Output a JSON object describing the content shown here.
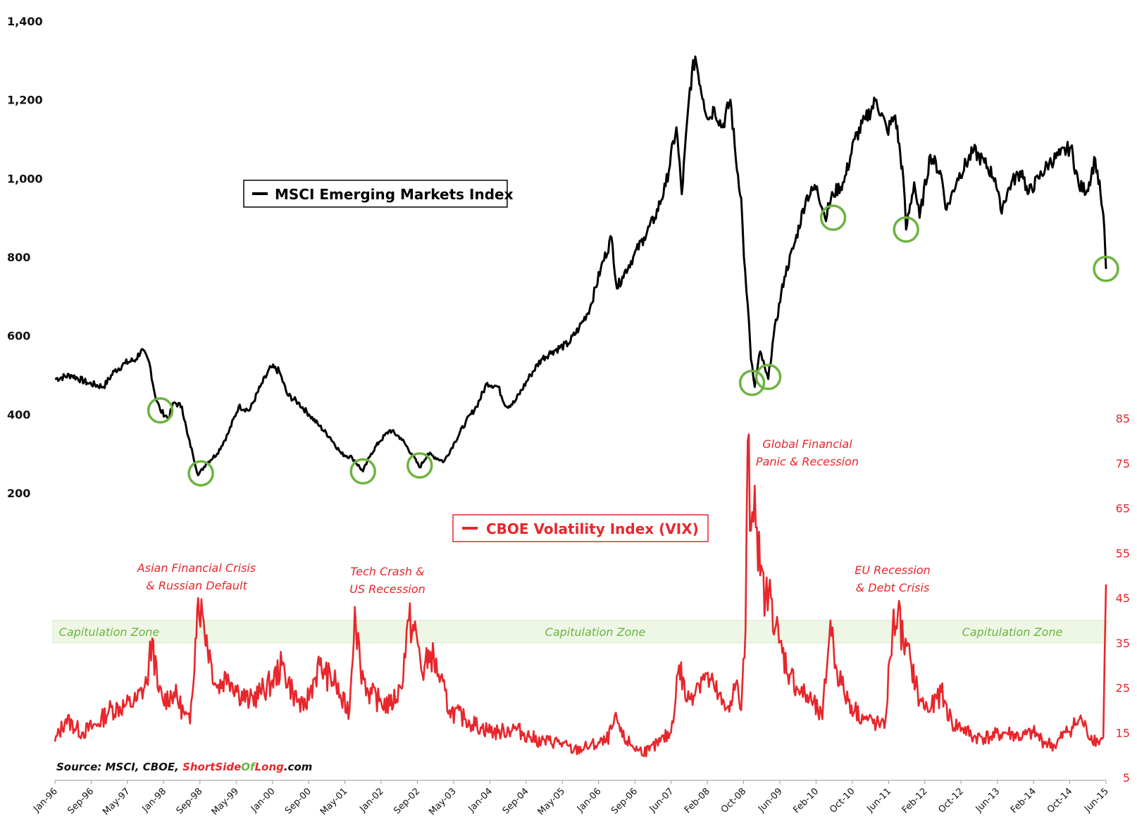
{
  "chart_data": {
    "type": "line",
    "x_tick_labels": [
      "Jan-96",
      "Sep-96",
      "May-97",
      "Jan-98",
      "Sep-98",
      "May-99",
      "Jan-00",
      "Sep-00",
      "May-01",
      "Jan-02",
      "Sep-02",
      "May-03",
      "Jan-04",
      "Sep-04",
      "May-05",
      "Jan-06",
      "Sep-06",
      "Jun-07",
      "Feb-08",
      "Oct-08",
      "Jun-09",
      "Feb-10",
      "Oct-10",
      "Jun-11",
      "Feb-12",
      "Oct-12",
      "Jun-13",
      "Feb-14",
      "Oct-14",
      "Jun-15"
    ],
    "x_range": [
      1996.0,
      2015.45
    ],
    "y_left": {
      "ticks": [
        "1,400",
        "1,200",
        "1,000",
        "800",
        "600",
        "400",
        "200"
      ],
      "tick_values": [
        1400,
        1200,
        1000,
        800,
        600,
        400,
        200
      ],
      "range": [
        200,
        1400
      ]
    },
    "y_right": {
      "ticks": [
        "85",
        "75",
        "65",
        "55",
        "45",
        "35",
        "25",
        "15",
        "5"
      ],
      "tick_values": [
        85,
        75,
        65,
        55,
        45,
        35,
        25,
        15,
        5
      ],
      "range": [
        5,
        85
      ]
    },
    "series": [
      {
        "name": "MSCI Emerging Markets Index",
        "axis": "left",
        "color": "#000000",
        "points": [
          [
            1996.0,
            490
          ],
          [
            1996.3,
            500
          ],
          [
            1996.6,
            480
          ],
          [
            1996.9,
            470
          ],
          [
            1997.1,
            510
          ],
          [
            1997.3,
            530
          ],
          [
            1997.5,
            540
          ],
          [
            1997.6,
            565
          ],
          [
            1997.75,
            530
          ],
          [
            1997.85,
            450
          ],
          [
            1997.95,
            410
          ],
          [
            1998.1,
            390
          ],
          [
            1998.2,
            430
          ],
          [
            1998.35,
            420
          ],
          [
            1998.45,
            350
          ],
          [
            1998.55,
            300
          ],
          [
            1998.65,
            245
          ],
          [
            1998.8,
            275
          ],
          [
            1999.0,
            300
          ],
          [
            1999.2,
            350
          ],
          [
            1999.4,
            420
          ],
          [
            1999.6,
            410
          ],
          [
            1999.8,
            470
          ],
          [
            2000.0,
            520
          ],
          [
            2000.15,
            510
          ],
          [
            2000.3,
            450
          ],
          [
            2000.5,
            430
          ],
          [
            2000.7,
            400
          ],
          [
            2000.9,
            370
          ],
          [
            2001.1,
            340
          ],
          [
            2001.3,
            300
          ],
          [
            2001.5,
            290
          ],
          [
            2001.7,
            255
          ],
          [
            2001.85,
            300
          ],
          [
            2002.0,
            330
          ],
          [
            2002.2,
            360
          ],
          [
            2002.4,
            340
          ],
          [
            2002.6,
            300
          ],
          [
            2002.75,
            265
          ],
          [
            2002.9,
            300
          ],
          [
            2003.2,
            280
          ],
          [
            2003.4,
            330
          ],
          [
            2003.6,
            380
          ],
          [
            2003.8,
            420
          ],
          [
            2004.0,
            480
          ],
          [
            2004.2,
            470
          ],
          [
            2004.35,
            420
          ],
          [
            2004.5,
            430
          ],
          [
            2004.8,
            500
          ],
          [
            2005.0,
            540
          ],
          [
            2005.2,
            560
          ],
          [
            2005.5,
            580
          ],
          [
            2005.7,
            620
          ],
          [
            2005.9,
            670
          ],
          [
            2006.1,
            770
          ],
          [
            2006.3,
            850
          ],
          [
            2006.4,
            720
          ],
          [
            2006.5,
            750
          ],
          [
            2006.7,
            800
          ],
          [
            2006.9,
            850
          ],
          [
            2007.1,
            900
          ],
          [
            2007.3,
            980
          ],
          [
            2007.5,
            1130
          ],
          [
            2007.6,
            960
          ],
          [
            2007.75,
            1230
          ],
          [
            2007.85,
            1310
          ],
          [
            2008.0,
            1200
          ],
          [
            2008.1,
            1150
          ],
          [
            2008.2,
            1180
          ],
          [
            2008.35,
            1130
          ],
          [
            2008.5,
            1200
          ],
          [
            2008.6,
            1050
          ],
          [
            2008.7,
            950
          ],
          [
            2008.75,
            800
          ],
          [
            2008.82,
            680
          ],
          [
            2008.88,
            540
          ],
          [
            2008.95,
            470
          ],
          [
            2009.05,
            560
          ],
          [
            2009.15,
            510
          ],
          [
            2009.2,
            490
          ],
          [
            2009.3,
            600
          ],
          [
            2009.5,
            750
          ],
          [
            2009.7,
            840
          ],
          [
            2009.9,
            950
          ],
          [
            2010.1,
            980
          ],
          [
            2010.25,
            900
          ],
          [
            2010.4,
            960
          ],
          [
            2010.6,
            990
          ],
          [
            2010.8,
            1100
          ],
          [
            2011.0,
            1150
          ],
          [
            2011.2,
            1200
          ],
          [
            2011.4,
            1120
          ],
          [
            2011.55,
            1160
          ],
          [
            2011.7,
            1000
          ],
          [
            2011.75,
            870
          ],
          [
            2011.9,
            990
          ],
          [
            2012.0,
            900
          ],
          [
            2012.2,
            1060
          ],
          [
            2012.4,
            1010
          ],
          [
            2012.5,
            920
          ],
          [
            2012.7,
            1000
          ],
          [
            2013.0,
            1070
          ],
          [
            2013.2,
            1040
          ],
          [
            2013.4,
            1000
          ],
          [
            2013.5,
            920
          ],
          [
            2013.7,
            990
          ],
          [
            2013.9,
            1020
          ],
          [
            2014.0,
            960
          ],
          [
            2014.2,
            1000
          ],
          [
            2014.4,
            1040
          ],
          [
            2014.6,
            1060
          ],
          [
            2014.8,
            1080
          ],
          [
            2014.95,
            980
          ],
          [
            2015.1,
            970
          ],
          [
            2015.25,
            1050
          ],
          [
            2015.35,
            960
          ],
          [
            2015.42,
            870
          ],
          [
            2015.45,
            770
          ]
        ]
      },
      {
        "name": "CBOE Volatility Index (VIX)",
        "axis": "right",
        "color": "#e8262b",
        "points": [
          [
            1996.0,
            13
          ],
          [
            1996.2,
            18
          ],
          [
            1996.5,
            15
          ],
          [
            1996.8,
            17
          ],
          [
            1997.0,
            20
          ],
          [
            1997.3,
            21
          ],
          [
            1997.5,
            22
          ],
          [
            1997.7,
            26
          ],
          [
            1997.8,
            36
          ],
          [
            1997.9,
            25
          ],
          [
            1998.0,
            22
          ],
          [
            1998.2,
            24
          ],
          [
            1998.4,
            19
          ],
          [
            1998.5,
            17
          ],
          [
            1998.6,
            36
          ],
          [
            1998.65,
            45
          ],
          [
            1998.75,
            40
          ],
          [
            1998.9,
            30
          ],
          [
            1999.0,
            25
          ],
          [
            1999.2,
            28
          ],
          [
            1999.4,
            24
          ],
          [
            1999.6,
            22
          ],
          [
            1999.8,
            24
          ],
          [
            2000.0,
            26
          ],
          [
            2000.2,
            30
          ],
          [
            2000.4,
            24
          ],
          [
            2000.6,
            20
          ],
          [
            2000.8,
            27
          ],
          [
            2000.9,
            30
          ],
          [
            2001.0,
            28
          ],
          [
            2001.2,
            26
          ],
          [
            2001.3,
            22
          ],
          [
            2001.45,
            20
          ],
          [
            2001.55,
            43
          ],
          [
            2001.65,
            30
          ],
          [
            2001.8,
            24
          ],
          [
            2002.0,
            22
          ],
          [
            2002.2,
            21
          ],
          [
            2002.4,
            25
          ],
          [
            2002.55,
            40
          ],
          [
            2002.7,
            36
          ],
          [
            2002.8,
            28
          ],
          [
            2002.95,
            33
          ],
          [
            2003.1,
            28
          ],
          [
            2003.3,
            20
          ],
          [
            2003.6,
            18
          ],
          [
            2003.9,
            16
          ],
          [
            2004.2,
            15
          ],
          [
            2004.5,
            16
          ],
          [
            2004.8,
            14
          ],
          [
            2005.0,
            13
          ],
          [
            2005.3,
            13
          ],
          [
            2005.6,
            11
          ],
          [
            2005.9,
            12
          ],
          [
            2006.2,
            13
          ],
          [
            2006.4,
            18
          ],
          [
            2006.5,
            14
          ],
          [
            2006.8,
            11
          ],
          [
            2007.0,
            11
          ],
          [
            2007.2,
            13
          ],
          [
            2007.4,
            15
          ],
          [
            2007.55,
            30
          ],
          [
            2007.7,
            22
          ],
          [
            2007.9,
            26
          ],
          [
            2008.0,
            28
          ],
          [
            2008.2,
            25
          ],
          [
            2008.4,
            20
          ],
          [
            2008.5,
            22
          ],
          [
            2008.6,
            26
          ],
          [
            2008.7,
            20
          ],
          [
            2008.78,
            38
          ],
          [
            2008.82,
            80
          ],
          [
            2008.88,
            60
          ],
          [
            2008.95,
            70
          ],
          [
            2009.05,
            50
          ],
          [
            2009.15,
            45
          ],
          [
            2009.25,
            45
          ],
          [
            2009.4,
            35
          ],
          [
            2009.6,
            28
          ],
          [
            2009.8,
            24
          ],
          [
            2010.0,
            22
          ],
          [
            2010.2,
            18
          ],
          [
            2010.35,
            40
          ],
          [
            2010.45,
            30
          ],
          [
            2010.6,
            24
          ],
          [
            2010.8,
            20
          ],
          [
            2011.0,
            18
          ],
          [
            2011.2,
            17
          ],
          [
            2011.35,
            16
          ],
          [
            2011.5,
            38
          ],
          [
            2011.6,
            42
          ],
          [
            2011.7,
            35
          ],
          [
            2011.85,
            30
          ],
          [
            2012.0,
            22
          ],
          [
            2012.2,
            20
          ],
          [
            2012.4,
            24
          ],
          [
            2012.6,
            17
          ],
          [
            2012.8,
            16
          ],
          [
            2013.0,
            14
          ],
          [
            2013.3,
            14
          ],
          [
            2013.6,
            15
          ],
          [
            2013.9,
            14
          ],
          [
            2014.1,
            15
          ],
          [
            2014.3,
            13
          ],
          [
            2014.5,
            12
          ],
          [
            2014.7,
            15
          ],
          [
            2014.9,
            17
          ],
          [
            2015.0,
            18
          ],
          [
            2015.1,
            15
          ],
          [
            2015.3,
            13
          ],
          [
            2015.4,
            14
          ],
          [
            2015.45,
            48
          ]
        ]
      }
    ],
    "capitulation_zone": [
      35,
      40
    ],
    "zone_labels": [
      "Capitulation Zone",
      "Capitulation Zone",
      "Capitulation Zone"
    ],
    "annotations": [
      {
        "lines": [
          "Asian Financial Crisis",
          "& Russian Default"
        ]
      },
      {
        "lines": [
          "Tech Crash &",
          "US Recession"
        ]
      },
      {
        "lines": [
          "Global Financial",
          "Panic & Recession"
        ]
      },
      {
        "lines": [
          "EU Recession",
          "& Debt Crisis"
        ]
      }
    ],
    "circles": [
      [
        1997.95,
        410
      ],
      [
        1998.7,
        250
      ],
      [
        2001.7,
        255
      ],
      [
        2002.75,
        270
      ],
      [
        2008.9,
        480
      ],
      [
        2009.2,
        495
      ],
      [
        2010.4,
        900
      ],
      [
        2011.75,
        870
      ],
      [
        2015.45,
        770
      ]
    ],
    "source": {
      "prefix": "Source: MSCI, CBOE, ",
      "short": "Short",
      "side": "Side",
      "of": "Of",
      "long": "Long",
      "suffix": ".com"
    }
  },
  "colors": {
    "msci": "#000000",
    "vix": "#e8262b",
    "green": "#6cb43f",
    "zone_fill": "#eef7e6"
  }
}
